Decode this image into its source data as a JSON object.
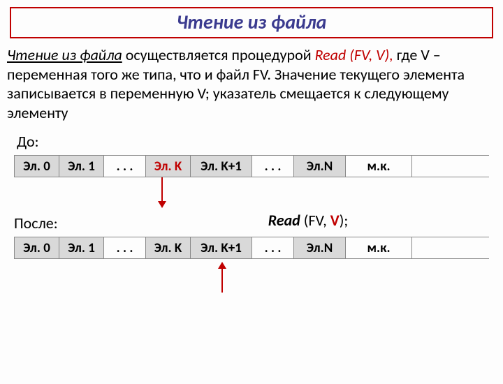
{
  "title": {
    "text": "Чтение из файла",
    "border_color": "#c00000",
    "text_color": "#3b3b8f"
  },
  "paragraph": {
    "lead_underlined": "Чтение из файла",
    "mid1": " осуществляется процедурой ",
    "proc": "Read (FV, V),",
    "rest": " где V – переменная того же типа, что и файл FV. Значение текущего элемента записывается в переменную V; указатель смещается к следующему элементу"
  },
  "labels": {
    "before": "До:",
    "after": "После:"
  },
  "read_call": {
    "prefix": "Read",
    "open": " (FV, ",
    "arg": "V",
    "close": ");"
  },
  "row_before": {
    "cells": [
      {
        "t": "Эл. 0",
        "shade": true,
        "red": false,
        "w": "w-el"
      },
      {
        "t": "Эл. 1",
        "shade": true,
        "red": false,
        "w": "w-el"
      },
      {
        "t": ". . .",
        "shade": false,
        "red": false,
        "w": "w-dots"
      },
      {
        "t": "Эл. K",
        "shade": true,
        "red": true,
        "w": "w-el"
      },
      {
        "t": "Эл. K+1",
        "shade": true,
        "red": false,
        "w": "w-k1"
      },
      {
        "t": ". . .",
        "shade": false,
        "red": false,
        "w": "w-dots"
      },
      {
        "t": "Эл.N",
        "shade": true,
        "red": false,
        "w": "w-n"
      },
      {
        "t": "м.к.",
        "shade": false,
        "red": false,
        "w": "w-mk"
      }
    ]
  },
  "row_after": {
    "cells": [
      {
        "t": "Эл. 0",
        "shade": true,
        "red": false,
        "w": "w-el"
      },
      {
        "t": "Эл. 1",
        "shade": true,
        "red": false,
        "w": "w-el"
      },
      {
        "t": ". . .",
        "shade": false,
        "red": false,
        "w": "w-dots"
      },
      {
        "t": "Эл. K",
        "shade": true,
        "red": false,
        "w": "w-el"
      },
      {
        "t": "Эл. K+1",
        "shade": true,
        "red": false,
        "w": "w-k1"
      },
      {
        "t": ". . .",
        "shade": false,
        "red": false,
        "w": "w-dots"
      },
      {
        "t": "Эл.N",
        "shade": true,
        "red": false,
        "w": "w-n"
      },
      {
        "t": "м.к.",
        "shade": false,
        "red": false,
        "w": "w-mk"
      }
    ]
  },
  "colors": {
    "red": "#c00000",
    "title_text": "#3b3b8f",
    "shade": "#d9d9d9",
    "border": "#888888"
  },
  "fonts": {
    "title_pt": 28,
    "body_pt": 22,
    "cell_pt": 19
  }
}
